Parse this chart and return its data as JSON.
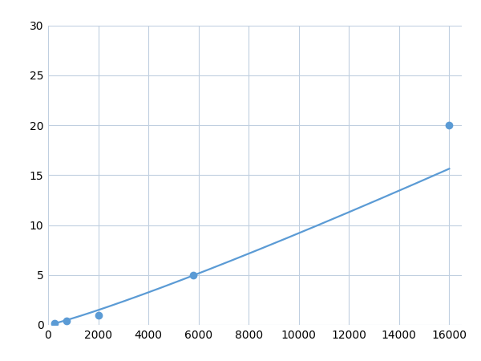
{
  "x": [
    250,
    750,
    2000,
    5800,
    16000
  ],
  "y": [
    0.2,
    0.4,
    1.0,
    5.0,
    20.0
  ],
  "line_color": "#5b9bd5",
  "marker_color": "#5b9bd5",
  "marker_size": 6,
  "line_width": 1.6,
  "xlim": [
    0,
    16500
  ],
  "ylim": [
    0,
    30
  ],
  "xticks": [
    0,
    2000,
    4000,
    6000,
    8000,
    10000,
    12000,
    14000,
    16000
  ],
  "yticks": [
    0,
    5,
    10,
    15,
    20,
    25,
    30
  ],
  "grid_color": "#c0cfe0",
  "grid_linewidth": 0.8,
  "background_color": "#ffffff",
  "tick_labelsize": 10,
  "figsize": [
    6.0,
    4.5
  ],
  "dpi": 100
}
